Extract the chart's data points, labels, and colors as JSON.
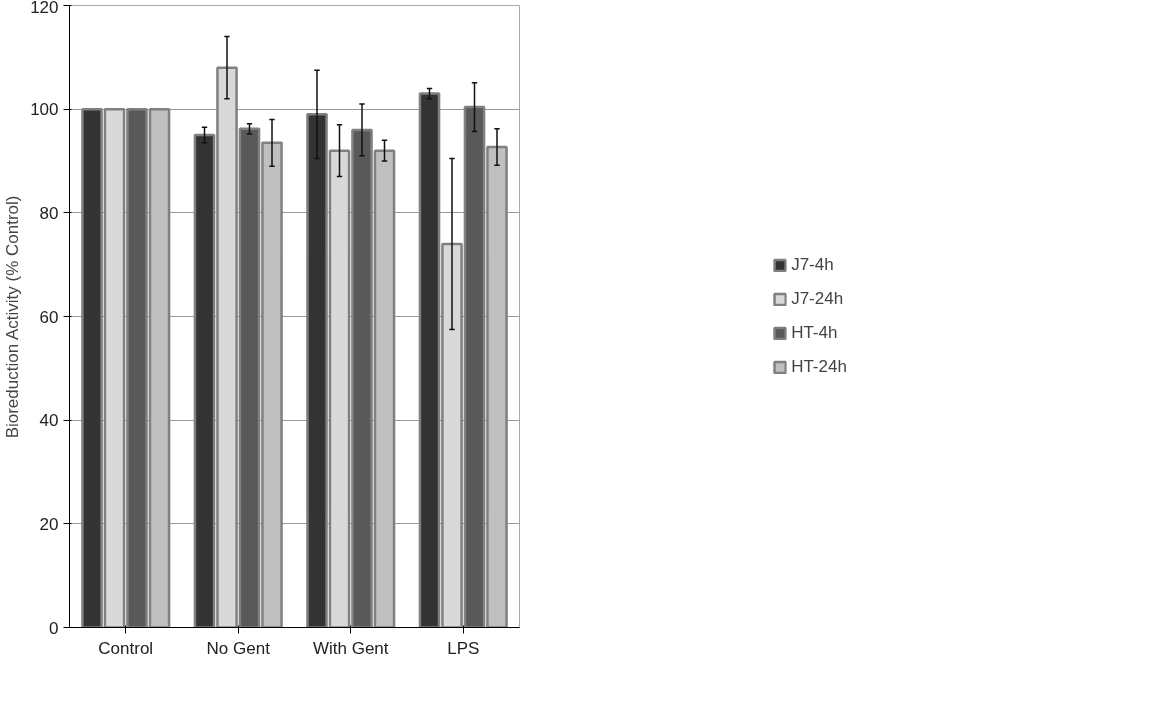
{
  "chart_data": {
    "type": "bar",
    "ylabel": "Bioreduction Activity (% Control)",
    "categories": [
      "Control",
      "No Gent",
      "With Gent",
      "LPS"
    ],
    "ylim": [
      0,
      120
    ],
    "yticks": [
      0,
      20,
      40,
      60,
      80,
      100,
      120
    ],
    "grid": "y",
    "legend": "right",
    "series": [
      {
        "name": "J7-4h",
        "color": "#333333",
        "values": [
          100,
          95,
          99,
          103
        ],
        "errors": [
          null,
          1.5,
          8.5,
          1
        ]
      },
      {
        "name": "J7-24h",
        "color": "#d9d9d9",
        "values": [
          100,
          108,
          92,
          74
        ],
        "errors": [
          null,
          6,
          5,
          16.5
        ]
      },
      {
        "name": "HT-4h",
        "color": "#595959",
        "values": [
          100,
          96.2,
          96,
          100.4
        ],
        "errors": [
          null,
          1,
          5,
          4.7
        ]
      },
      {
        "name": "HT-24h",
        "color": "#bfbfbf",
        "values": [
          100,
          93.5,
          92,
          92.7
        ],
        "errors": [
          null,
          4.5,
          2,
          3.5
        ]
      }
    ]
  }
}
